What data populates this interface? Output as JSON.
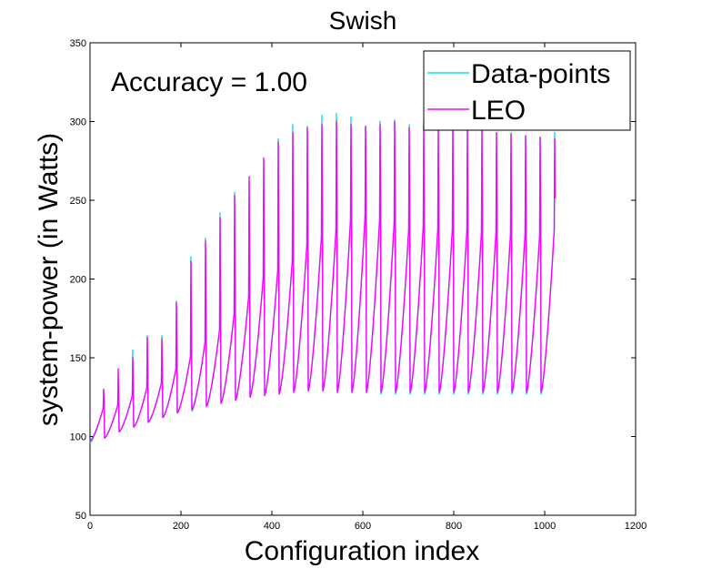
{
  "chart_data": {
    "type": "line",
    "title": "Swish",
    "xlabel": "Configuration index",
    "ylabel": "system-power (in Watts)",
    "annotation": "Accuracy = 1.00",
    "xlim": [
      0,
      1200
    ],
    "ylim": [
      50,
      350
    ],
    "xticks": [
      0,
      200,
      400,
      600,
      800,
      1000,
      1200
    ],
    "yticks": [
      50,
      100,
      150,
      200,
      250,
      300,
      350
    ],
    "legend_position": "top-right",
    "grid": false,
    "n_points": 1024,
    "period": 32,
    "series": [
      {
        "name": "Data-points",
        "color": "#00e5e5",
        "cycles": [
          {
            "low": 96,
            "mid": 118,
            "peak": 130
          },
          {
            "low": 99,
            "mid": 120,
            "peak": 132
          },
          {
            "low": 103,
            "mid": 126,
            "peak": 155
          },
          {
            "low": 106,
            "mid": 131,
            "peak": 164
          },
          {
            "low": 109,
            "mid": 134,
            "peak": 164
          },
          {
            "low": 112,
            "mid": 143,
            "peak": 186
          },
          {
            "low": 115,
            "mid": 151,
            "peak": 214
          },
          {
            "low": 116,
            "mid": 160,
            "peak": 226
          },
          {
            "low": 119,
            "mid": 168,
            "peak": 242
          },
          {
            "low": 121,
            "mid": 178,
            "peak": 255
          },
          {
            "low": 123,
            "mid": 189,
            "peak": 262
          },
          {
            "low": 125,
            "mid": 201,
            "peak": 275
          },
          {
            "low": 126,
            "mid": 206,
            "peak": 289
          },
          {
            "low": 127,
            "mid": 212,
            "peak": 298
          },
          {
            "low": 128,
            "mid": 222,
            "peak": 297
          },
          {
            "low": 129,
            "mid": 227,
            "peak": 304
          },
          {
            "low": 129,
            "mid": 231,
            "peak": 305
          },
          {
            "low": 128,
            "mid": 238,
            "peak": 303
          },
          {
            "low": 128,
            "mid": 240,
            "peak": 297
          },
          {
            "low": 128,
            "mid": 238,
            "peak": 300
          },
          {
            "low": 127,
            "mid": 236,
            "peak": 301
          },
          {
            "low": 127,
            "mid": 232,
            "peak": 298
          },
          {
            "low": 127,
            "mid": 234,
            "peak": 300
          },
          {
            "low": 127,
            "mid": 232,
            "peak": 293
          },
          {
            "low": 127,
            "mid": 232,
            "peak": 297
          },
          {
            "low": 127,
            "mid": 231,
            "peak": 295
          },
          {
            "low": 127,
            "mid": 230,
            "peak": 294
          },
          {
            "low": 127,
            "mid": 230,
            "peak": 293
          },
          {
            "low": 127,
            "mid": 229,
            "peak": 293
          },
          {
            "low": 127,
            "mid": 229,
            "peak": 291
          },
          {
            "low": 127,
            "mid": 228,
            "peak": 290
          },
          {
            "low": 127,
            "mid": 231,
            "peak": 293
          }
        ]
      },
      {
        "name": "LEO",
        "color": "#ff00ff",
        "cycles": [
          {
            "low": 97,
            "mid": 118,
            "peak": 130
          },
          {
            "low": 99,
            "mid": 120,
            "peak": 143
          },
          {
            "low": 103,
            "mid": 126,
            "peak": 150
          },
          {
            "low": 106,
            "mid": 131,
            "peak": 163
          },
          {
            "low": 109,
            "mid": 134,
            "peak": 162
          },
          {
            "low": 112,
            "mid": 143,
            "peak": 185
          },
          {
            "low": 115,
            "mid": 151,
            "peak": 211
          },
          {
            "low": 117,
            "mid": 160,
            "peak": 224
          },
          {
            "low": 119,
            "mid": 168,
            "peak": 239
          },
          {
            "low": 121,
            "mid": 178,
            "peak": 253
          },
          {
            "low": 123,
            "mid": 189,
            "peak": 265
          },
          {
            "low": 125,
            "mid": 201,
            "peak": 277
          },
          {
            "low": 126,
            "mid": 206,
            "peak": 287
          },
          {
            "low": 127,
            "mid": 212,
            "peak": 293
          },
          {
            "low": 128,
            "mid": 222,
            "peak": 296
          },
          {
            "low": 129,
            "mid": 227,
            "peak": 298
          },
          {
            "low": 129,
            "mid": 231,
            "peak": 300
          },
          {
            "low": 128,
            "mid": 238,
            "peak": 298
          },
          {
            "low": 128,
            "mid": 240,
            "peak": 297
          },
          {
            "low": 128,
            "mid": 238,
            "peak": 298
          },
          {
            "low": 128,
            "mid": 236,
            "peak": 300
          },
          {
            "low": 128,
            "mid": 232,
            "peak": 296
          },
          {
            "low": 128,
            "mid": 234,
            "peak": 297
          },
          {
            "low": 128,
            "mid": 232,
            "peak": 295
          },
          {
            "low": 128,
            "mid": 232,
            "peak": 297
          },
          {
            "low": 128,
            "mid": 231,
            "peak": 295
          },
          {
            "low": 128,
            "mid": 230,
            "peak": 294
          },
          {
            "low": 128,
            "mid": 230,
            "peak": 293
          },
          {
            "low": 128,
            "mid": 229,
            "peak": 292
          },
          {
            "low": 128,
            "mid": 229,
            "peak": 291
          },
          {
            "low": 128,
            "mid": 228,
            "peak": 290
          },
          {
            "low": 128,
            "mid": 231,
            "peak": 289
          }
        ]
      }
    ]
  }
}
